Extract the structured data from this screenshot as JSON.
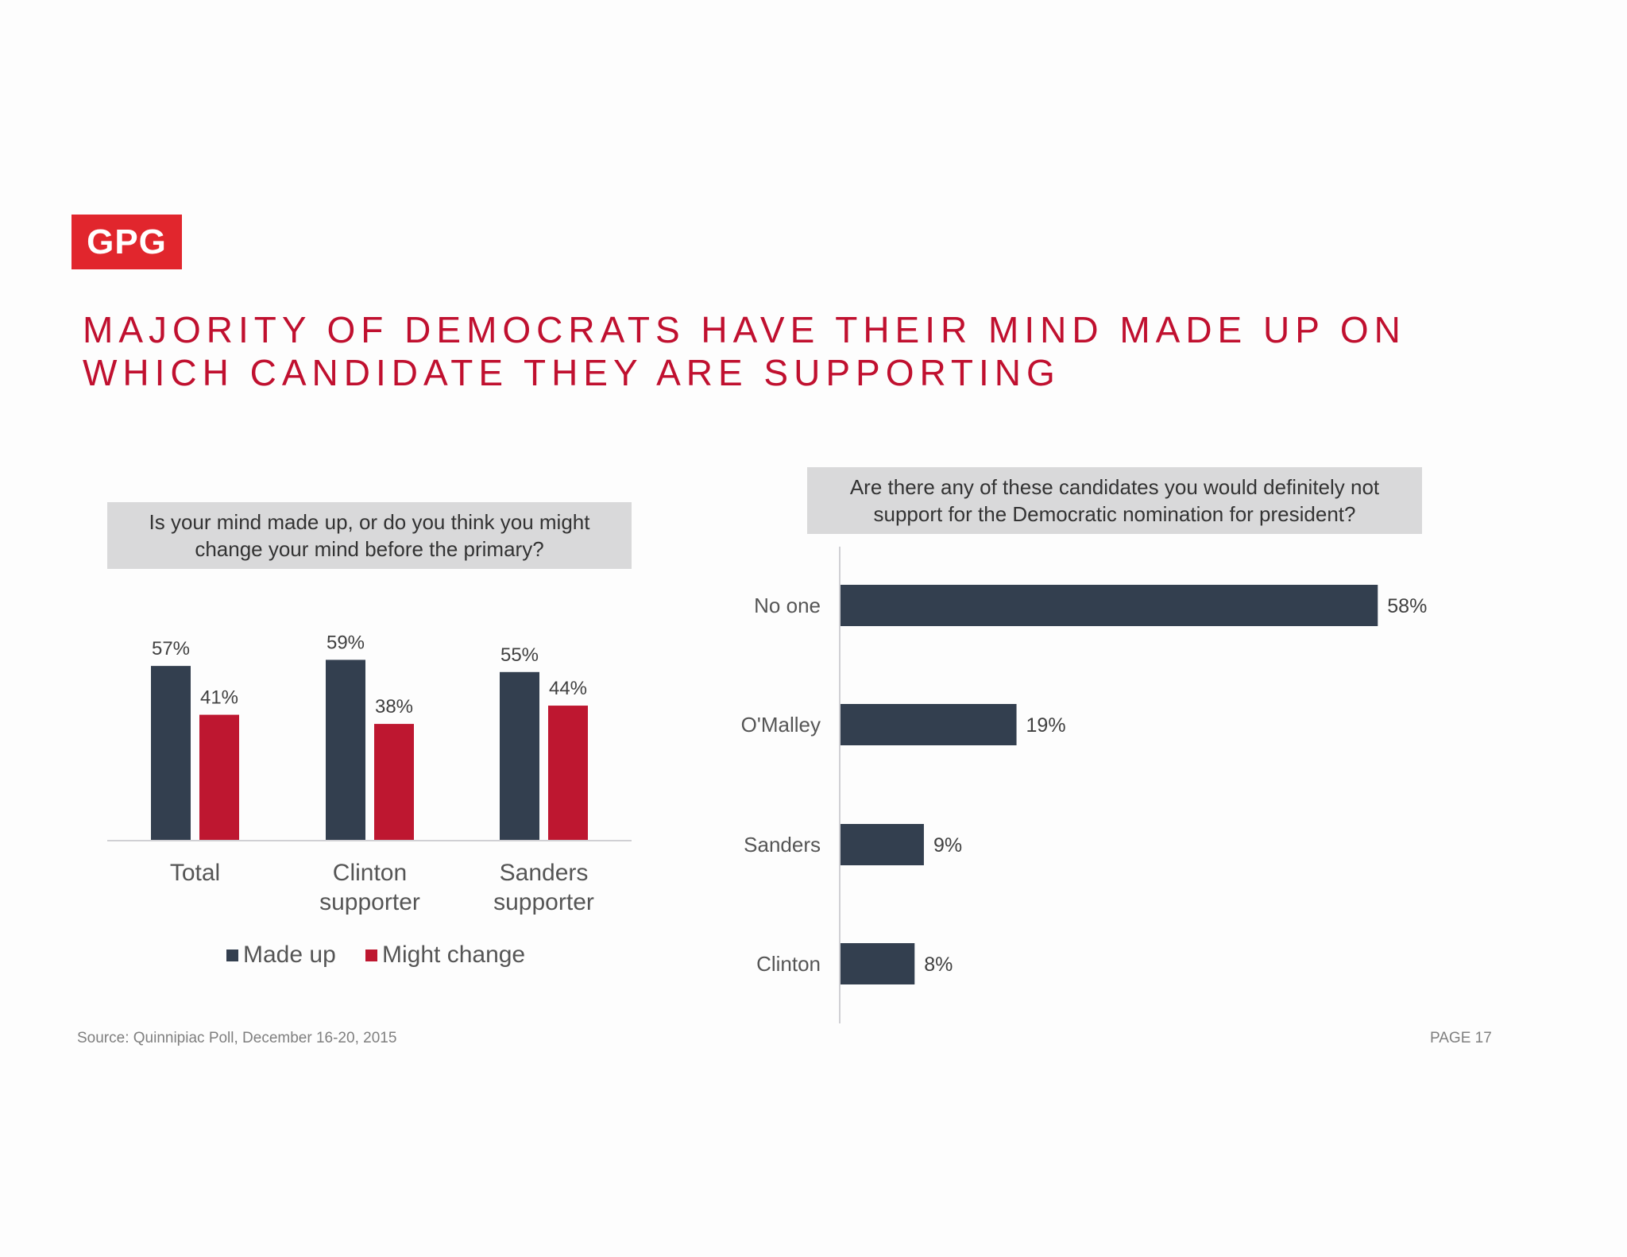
{
  "logo": "GPG",
  "title_lines": [
    "MAJORITY OF DEMOCRATS HAVE THEIR MIND MADE UP ON",
    "WHICH CANDIDATE THEY ARE SUPPORTING"
  ],
  "left_question_lines": [
    "Is your mind made up, or do you think you might",
    "change your mind before the primary?"
  ],
  "right_question_lines": [
    "Are there any of these candidates you would definitely not",
    "support for the Democratic nomination for president?"
  ],
  "source": "Source: Quinnipiac Poll, December 16-20, 2015",
  "page": "PAGE 17",
  "colors": {
    "dark": "#333f4f",
    "red": "#be1730",
    "accent": "#e1262d"
  },
  "chart_data": [
    {
      "type": "bar",
      "title": "Is your mind made up, or do you think you might change your mind before the primary?",
      "categories": [
        [
          "Total"
        ],
        [
          "Clinton",
          "supporter"
        ],
        [
          "Sanders",
          "supporter"
        ]
      ],
      "series": [
        {
          "name": "Made up",
          "values": [
            57,
            59,
            55
          ],
          "labels": [
            "57%",
            "59%",
            "55%"
          ]
        },
        {
          "name": "Might change",
          "values": [
            41,
            38,
            44
          ],
          "labels": [
            "41%",
            "38%",
            "44%"
          ]
        }
      ],
      "ylim": [
        0,
        100
      ],
      "legend": "bottom"
    },
    {
      "type": "bar",
      "orientation": "horizontal",
      "title": "Are there any of these candidates you would definitely not support for the Democratic nomination for president?",
      "categories": [
        "No one",
        "O'Malley",
        "Sanders",
        "Clinton"
      ],
      "values": [
        58,
        19,
        9,
        8
      ],
      "labels": [
        "58%",
        "19%",
        "9%",
        "8%"
      ],
      "xlim": [
        0,
        100
      ]
    }
  ]
}
